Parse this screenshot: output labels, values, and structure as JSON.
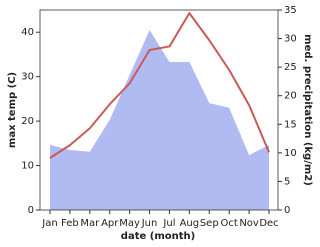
{
  "chart_data": {
    "type": "line-area",
    "x_label": "date (month)",
    "y_label": "max temp (C)",
    "y2_label": "med. precipitation (kg/m2)",
    "categories": [
      "Jan",
      "Feb",
      "Mar",
      "Apr",
      "May",
      "Jun",
      "Jul",
      "Aug",
      "Sep",
      "Oct",
      "Nov",
      "Dec"
    ],
    "series": [
      {
        "name": "max temp",
        "color": "#c85a5a",
        "axis": "y",
        "values": [
          11.7,
          14.6,
          18.4,
          23.8,
          28.5,
          36,
          36.8,
          44.3,
          38.2,
          31.5,
          23.6,
          13
        ]
      },
      {
        "name": "med. precipitation",
        "color": "#b0bbf2",
        "axis": "y2",
        "values": [
          11.4,
          10.5,
          10.2,
          15.8,
          23.6,
          31.5,
          25.9,
          25.9,
          18.7,
          17.9,
          9.6,
          11.4
        ]
      }
    ],
    "ylim": [
      0,
      45
    ],
    "yticks": [
      0,
      10,
      20,
      30,
      40
    ],
    "y2lim": [
      0,
      35
    ],
    "y2ticks": [
      0,
      5,
      10,
      15,
      20,
      25,
      30,
      35
    ]
  }
}
